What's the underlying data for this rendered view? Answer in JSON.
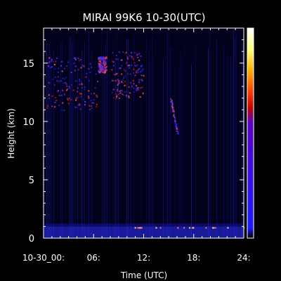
{
  "chart_data": {
    "type": "heatmap",
    "title": "MIRAI 99K6 10-30(UTC)",
    "xlabel": "Time (UTC)",
    "ylabel": "Height (km)",
    "xlim": [
      0,
      24
    ],
    "ylim": [
      0,
      18
    ],
    "x_ticks": [
      0,
      6,
      12,
      18,
      24
    ],
    "x_tick_labels": [
      "10-30_00:",
      "06:",
      "12:",
      "18:",
      "24:"
    ],
    "y_ticks": [
      0,
      5,
      10,
      15
    ],
    "y_tick_labels": [
      "0",
      "5",
      "10",
      "15"
    ],
    "colorbar": {
      "orientation": "vertical",
      "colors": [
        "#000000",
        "#1a1aff",
        "#5a00c8",
        "#c80000",
        "#ff4000",
        "#ffb000",
        "#ffff80",
        "#ffffff"
      ],
      "labels": []
    },
    "features": [
      {
        "name": "upper cirrus band",
        "x_range": [
          0.3,
          6.5
        ],
        "y_range": [
          11.0,
          15.5
        ]
      },
      {
        "name": "echo near 07 UTC",
        "x_range": [
          6.5,
          7.5
        ],
        "y_range": [
          14.2,
          15.6
        ]
      },
      {
        "name": "cloud 08-12 UTC",
        "x_range": [
          8.0,
          12.0
        ],
        "y_range": [
          12.0,
          16.0
        ]
      },
      {
        "name": "fall streak",
        "x_range": [
          15.2,
          16.0
        ],
        "y_range": [
          9.0,
          12.0
        ]
      },
      {
        "name": "surface clutter layer",
        "x_range": [
          0,
          24
        ],
        "y_range": [
          0,
          1.0
        ]
      }
    ]
  }
}
